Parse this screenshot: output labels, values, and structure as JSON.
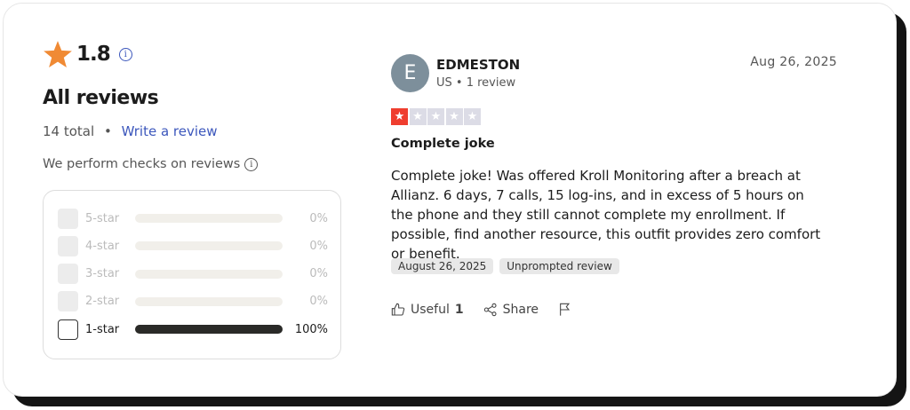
{
  "summary": {
    "rating": "1.8",
    "title": "All reviews",
    "total": "14 total",
    "separator": "•",
    "write_review": "Write a review",
    "checks": "We perform checks on reviews",
    "star_color": "#f08a34",
    "link_color": "#3c57bc"
  },
  "distribution": [
    {
      "label": "5-star",
      "percent": "0%",
      "value": 0,
      "checked": false
    },
    {
      "label": "4-star",
      "percent": "0%",
      "value": 0,
      "checked": false
    },
    {
      "label": "3-star",
      "percent": "0%",
      "value": 0,
      "checked": false
    },
    {
      "label": "2-star",
      "percent": "0%",
      "value": 0,
      "checked": false
    },
    {
      "label": "1-star",
      "percent": "100%",
      "value": 100,
      "checked": false
    }
  ],
  "review": {
    "avatar_letter": "E",
    "author": "EDMESTON",
    "meta": "US • 1 review",
    "date": "Aug 26, 2025",
    "stars": 1,
    "star_color": "#ef3e2f",
    "title": "Complete joke",
    "body": "Complete joke! Was offered Kroll Monitoring after a breach at Allianz. 6 days, 7 calls, 15 log-ins, and in excess of 5 hours on the phone and they still cannot complete my enrollment. If possible, find another resource, this outfit provides zero comfort or benefit.",
    "tags": [
      "August 26, 2025",
      "Unprompted review"
    ],
    "useful_label": "Useful",
    "useful_count": "1",
    "share_label": "Share"
  }
}
